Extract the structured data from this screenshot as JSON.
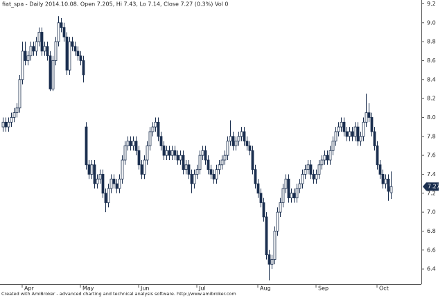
{
  "chart_data": {
    "type": "candlestick",
    "title": "fiat_spa - Daily 2014.10.08. Open 7.205, Hi 7.43, Lo 7.14, Close 7.27 (0.3%) Vol 0",
    "footer": "Created with AmiBroker - advanced charting and technical analysis software. http://www.amibroker.com",
    "up_color": "#ffffff",
    "down_color": "#1b2f4f",
    "line_color": "#1b2f4f",
    "categories": [
      null,
      null,
      null,
      null,
      null,
      null,
      null,
      "Apr",
      null,
      null,
      null,
      null,
      null,
      null,
      null,
      null,
      null,
      null,
      null,
      null,
      null,
      null,
      null,
      null,
      null,
      null,
      null,
      null,
      "May",
      null,
      null,
      null,
      null,
      null,
      null,
      null,
      null,
      null,
      null,
      null,
      null,
      null,
      null,
      null,
      null,
      null,
      null,
      null,
      null,
      "Jun",
      null,
      null,
      null,
      null,
      null,
      null,
      null,
      null,
      null,
      null,
      null,
      null,
      null,
      null,
      null,
      null,
      null,
      null,
      null,
      null,
      "Jul",
      null,
      null,
      null,
      null,
      null,
      null,
      null,
      null,
      null,
      null,
      null,
      null,
      null,
      null,
      null,
      null,
      null,
      null,
      null,
      null,
      null,
      "Aug",
      null,
      null,
      null,
      null,
      null,
      null,
      null,
      null,
      null,
      null,
      null,
      null,
      null,
      null,
      null,
      null,
      null,
      null,
      null,
      null,
      "Sep",
      null,
      null,
      null,
      null,
      null,
      null,
      null,
      null,
      null,
      null,
      null,
      null,
      null,
      null,
      null,
      null,
      null,
      null,
      null,
      null,
      null,
      "Oct",
      null,
      null,
      null,
      null,
      null
    ],
    "open": [
      7.9,
      7.95,
      7.9,
      7.95,
      8.0,
      8.05,
      8.1,
      8.4,
      8.7,
      8.6,
      8.65,
      8.75,
      8.7,
      8.8,
      8.9,
      8.7,
      8.75,
      8.65,
      8.3,
      8.6,
      8.8,
      9.0,
      8.95,
      8.85,
      8.5,
      8.8,
      8.75,
      8.7,
      8.65,
      8.6,
      7.9,
      7.5,
      7.4,
      7.5,
      7.3,
      7.35,
      7.4,
      7.2,
      7.1,
      7.25,
      7.35,
      7.3,
      7.25,
      7.35,
      7.55,
      7.7,
      7.75,
      7.7,
      7.75,
      7.65,
      7.5,
      7.4,
      7.55,
      7.7,
      7.85,
      7.9,
      7.95,
      7.8,
      7.7,
      7.6,
      7.65,
      7.6,
      7.65,
      7.6,
      7.55,
      7.6,
      7.45,
      7.5,
      7.4,
      7.3,
      7.4,
      7.45,
      7.6,
      7.65,
      7.55,
      7.45,
      7.4,
      7.35,
      7.45,
      7.5,
      7.55,
      7.6,
      7.75,
      7.8,
      7.7,
      7.75,
      7.8,
      7.85,
      7.75,
      7.7,
      7.65,
      7.45,
      7.3,
      7.2,
      7.1,
      6.95,
      6.55,
      6.45,
      6.5,
      6.8,
      7.0,
      7.1,
      7.25,
      7.35,
      7.15,
      7.2,
      7.15,
      7.25,
      7.3,
      7.4,
      7.45,
      7.5,
      7.4,
      7.35,
      7.4,
      7.5,
      7.55,
      7.6,
      7.55,
      7.65,
      7.75,
      7.85,
      7.9,
      7.95,
      7.85,
      7.8,
      7.85,
      7.8,
      7.9,
      7.75,
      7.8,
      7.95,
      8.05,
      8.0,
      7.85,
      7.7,
      7.5,
      7.4,
      7.3,
      7.35,
      7.205
    ],
    "high": [
      8.0,
      8.0,
      8.0,
      8.05,
      8.1,
      8.15,
      8.45,
      8.8,
      8.8,
      8.7,
      8.8,
      8.8,
      8.85,
      8.95,
      8.95,
      8.8,
      8.8,
      8.7,
      8.65,
      8.85,
      9.07,
      9.05,
      9.0,
      8.9,
      8.85,
      8.85,
      8.8,
      8.75,
      8.7,
      8.65,
      7.95,
      7.55,
      7.55,
      7.55,
      7.4,
      7.45,
      7.45,
      7.25,
      7.3,
      7.4,
      7.4,
      7.35,
      7.4,
      7.6,
      7.75,
      7.8,
      7.8,
      7.8,
      7.8,
      7.7,
      7.55,
      7.6,
      7.75,
      7.9,
      7.95,
      8.0,
      8.0,
      7.85,
      7.75,
      7.7,
      7.7,
      7.7,
      7.7,
      7.65,
      7.65,
      7.65,
      7.55,
      7.55,
      7.45,
      7.45,
      7.5,
      7.65,
      7.7,
      7.7,
      7.6,
      7.5,
      7.45,
      7.5,
      7.55,
      7.6,
      7.65,
      7.8,
      7.97,
      7.85,
      7.8,
      7.85,
      7.9,
      7.9,
      7.8,
      7.75,
      7.7,
      7.5,
      7.35,
      7.25,
      7.15,
      7.0,
      6.6,
      6.55,
      6.85,
      7.05,
      7.15,
      7.3,
      7.4,
      7.4,
      7.25,
      7.25,
      7.3,
      7.35,
      7.45,
      7.5,
      7.55,
      7.55,
      7.45,
      7.45,
      7.55,
      7.6,
      7.65,
      7.65,
      7.7,
      7.8,
      7.9,
      7.95,
      8.0,
      8.0,
      7.9,
      7.9,
      7.9,
      7.95,
      7.95,
      7.85,
      8.0,
      8.25,
      8.15,
      8.05,
      7.9,
      7.75,
      7.55,
      7.45,
      7.4,
      7.4,
      7.43
    ],
    "low": [
      7.85,
      7.85,
      7.85,
      7.9,
      7.95,
      8.0,
      8.05,
      8.35,
      8.55,
      8.55,
      8.6,
      8.65,
      8.65,
      8.75,
      8.65,
      8.65,
      8.6,
      8.28,
      8.28,
      8.55,
      8.75,
      8.9,
      8.8,
      8.45,
      8.45,
      8.7,
      8.65,
      8.6,
      8.55,
      8.37,
      7.45,
      7.35,
      7.35,
      7.25,
      7.25,
      7.3,
      7.15,
      7.0,
      7.05,
      7.2,
      7.25,
      7.2,
      7.2,
      7.3,
      7.5,
      7.65,
      7.65,
      7.65,
      7.6,
      7.45,
      7.35,
      7.35,
      7.5,
      7.65,
      7.8,
      7.85,
      7.75,
      7.65,
      7.55,
      7.55,
      7.55,
      7.55,
      7.55,
      7.5,
      7.5,
      7.4,
      7.4,
      7.35,
      7.2,
      7.25,
      7.35,
      7.4,
      7.55,
      7.5,
      7.4,
      7.35,
      7.3,
      7.3,
      7.4,
      7.45,
      7.5,
      7.55,
      7.7,
      7.65,
      7.65,
      7.7,
      7.75,
      7.7,
      7.65,
      7.6,
      7.4,
      7.25,
      7.15,
      7.05,
      6.9,
      6.5,
      6.28,
      6.4,
      6.45,
      6.75,
      6.95,
      7.05,
      7.2,
      7.1,
      7.1,
      7.1,
      7.1,
      7.2,
      7.25,
      7.35,
      7.4,
      7.35,
      7.3,
      7.3,
      7.35,
      7.45,
      7.5,
      7.5,
      7.5,
      7.6,
      7.7,
      7.8,
      7.85,
      7.8,
      7.75,
      7.75,
      7.75,
      7.75,
      7.7,
      7.7,
      7.75,
      7.9,
      7.95,
      7.8,
      7.65,
      7.45,
      7.35,
      7.25,
      7.25,
      7.12,
      7.14
    ],
    "close": [
      7.95,
      7.9,
      7.95,
      8.0,
      8.05,
      8.1,
      8.4,
      8.7,
      8.6,
      8.65,
      8.75,
      8.7,
      8.8,
      8.9,
      8.7,
      8.75,
      8.65,
      8.3,
      8.6,
      8.8,
      9.0,
      8.95,
      8.85,
      8.5,
      8.8,
      8.75,
      8.7,
      8.65,
      8.6,
      8.45,
      7.5,
      7.4,
      7.5,
      7.3,
      7.35,
      7.4,
      7.2,
      7.1,
      7.25,
      7.35,
      7.3,
      7.25,
      7.35,
      7.55,
      7.7,
      7.75,
      7.7,
      7.75,
      7.65,
      7.5,
      7.4,
      7.55,
      7.7,
      7.85,
      7.9,
      7.95,
      7.8,
      7.7,
      7.6,
      7.65,
      7.6,
      7.65,
      7.6,
      7.55,
      7.6,
      7.45,
      7.5,
      7.4,
      7.3,
      7.4,
      7.45,
      7.6,
      7.65,
      7.55,
      7.45,
      7.4,
      7.35,
      7.45,
      7.5,
      7.55,
      7.6,
      7.75,
      7.8,
      7.7,
      7.75,
      7.8,
      7.85,
      7.75,
      7.7,
      7.65,
      7.45,
      7.3,
      7.2,
      7.1,
      6.95,
      6.55,
      6.45,
      6.5,
      6.8,
      7.0,
      7.1,
      7.25,
      7.35,
      7.15,
      7.2,
      7.15,
      7.25,
      7.3,
      7.4,
      7.45,
      7.5,
      7.4,
      7.35,
      7.4,
      7.5,
      7.55,
      7.6,
      7.55,
      7.65,
      7.75,
      7.85,
      7.9,
      7.95,
      7.85,
      7.8,
      7.85,
      7.8,
      7.9,
      7.75,
      7.8,
      7.95,
      8.05,
      8.0,
      7.85,
      7.7,
      7.5,
      7.4,
      7.3,
      7.35,
      7.22,
      7.27
    ],
    "ylim": [
      6.24,
      9.24
    ],
    "yticks": [
      6.4,
      6.6,
      6.8,
      {
        "value": 7,
        "label": "7.0"
      },
      7.2,
      7.4,
      7.6,
      7.8,
      {
        "value": 8,
        "label": "8.0"
      },
      8.2,
      8.4,
      8.6,
      8.8,
      {
        "value": 9,
        "label": "9.0"
      },
      9.2
    ],
    "grid": false
  }
}
